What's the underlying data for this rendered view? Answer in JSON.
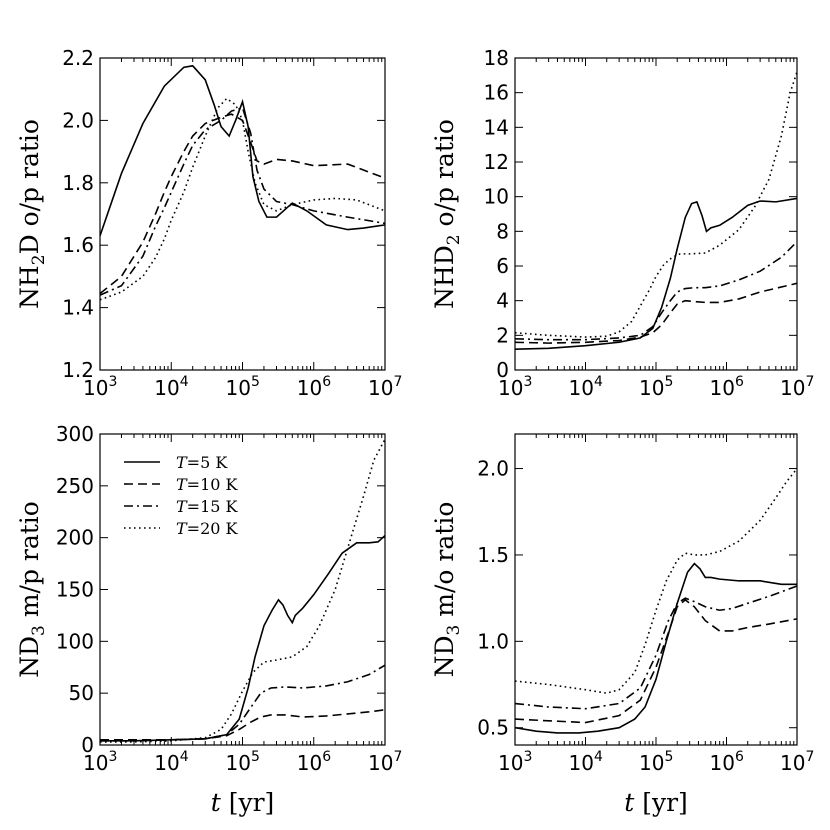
{
  "chart_data": [
    {
      "type": "line",
      "id": "p1",
      "ylabel": "NH2D o/p ratio",
      "ylabel_parts": {
        "a": "NH",
        "sub": "2",
        "b": "D  o/p ratio"
      },
      "xlabel": "",
      "xscale": "log",
      "xlim": [
        1000,
        10000000
      ],
      "ylim": [
        1.2,
        2.2
      ],
      "xtick_base": "10",
      "xticks": [
        {
          "value": 1000,
          "exp": "3"
        },
        {
          "value": 10000,
          "exp": "4"
        },
        {
          "value": 100000,
          "exp": "5"
        },
        {
          "value": 1000000,
          "exp": "6"
        },
        {
          "value": 10000000,
          "exp": "7"
        }
      ],
      "yticks": [
        {
          "value": 1.2,
          "label": "1.2"
        },
        {
          "value": 1.4,
          "label": "1.4"
        },
        {
          "value": 1.6,
          "label": "1.6"
        },
        {
          "value": 1.8,
          "label": "1.8"
        },
        {
          "value": 2.0,
          "label": "2.0"
        },
        {
          "value": 2.2,
          "label": "2.2"
        }
      ],
      "series": [
        {
          "name": "T=5 K",
          "dash": "solid",
          "x": [
            1000,
            2000,
            4000,
            8000,
            15000,
            20000,
            30000,
            40000,
            50000,
            65000,
            80000,
            100000,
            120000,
            140000,
            170000,
            220000,
            300000,
            500000,
            800000,
            1500000,
            3000000,
            5000000,
            10000000
          ],
          "y": [
            1.63,
            1.83,
            1.99,
            2.11,
            2.17,
            2.175,
            2.13,
            2.05,
            1.98,
            1.95,
            2.0,
            2.06,
            1.98,
            1.82,
            1.74,
            1.69,
            1.69,
            1.735,
            1.71,
            1.665,
            1.65,
            1.655,
            1.665
          ]
        },
        {
          "name": "T=10 K",
          "dash": "dashed",
          "x": [
            1000,
            2000,
            4000,
            6000,
            8000,
            10000,
            15000,
            20000,
            30000,
            50000,
            70000,
            100000,
            130000,
            160000,
            200000,
            300000,
            500000,
            1000000,
            3000000,
            10000000
          ],
          "y": [
            1.445,
            1.5,
            1.61,
            1.7,
            1.77,
            1.82,
            1.9,
            1.95,
            1.99,
            2.01,
            2.02,
            2.0,
            1.93,
            1.87,
            1.86,
            1.875,
            1.87,
            1.855,
            1.86,
            1.815
          ]
        },
        {
          "name": "T=15 K",
          "dash": "dashdot",
          "x": [
            1000,
            2000,
            4000,
            6000,
            8000,
            10000,
            15000,
            20000,
            30000,
            50000,
            70000,
            100000,
            130000,
            160000,
            200000,
            300000,
            500000,
            1000000,
            3000000,
            10000000
          ],
          "y": [
            1.44,
            1.47,
            1.565,
            1.66,
            1.72,
            1.77,
            1.86,
            1.92,
            1.97,
            2.0,
            2.03,
            2.04,
            1.96,
            1.84,
            1.78,
            1.74,
            1.73,
            1.71,
            1.69,
            1.67
          ]
        },
        {
          "name": "T=20 K",
          "dash": "dotted",
          "x": [
            1000,
            2000,
            4000,
            6000,
            8000,
            10000,
            15000,
            20000,
            30000,
            45000,
            60000,
            80000,
            100000,
            120000,
            150000,
            200000,
            300000,
            500000,
            1000000,
            2000000,
            4000000,
            10000000
          ],
          "y": [
            1.425,
            1.45,
            1.5,
            1.56,
            1.62,
            1.68,
            1.77,
            1.85,
            1.95,
            2.04,
            2.07,
            2.05,
            2.0,
            1.9,
            1.8,
            1.73,
            1.71,
            1.73,
            1.745,
            1.75,
            1.745,
            1.71
          ]
        }
      ]
    },
    {
      "type": "line",
      "id": "p2",
      "ylabel": "NHD2 o/p ratio",
      "ylabel_parts": {
        "a": "NHD",
        "sub": "2",
        "b": " o/p ratio"
      },
      "xlabel": "",
      "xscale": "log",
      "xlim": [
        1000,
        10000000
      ],
      "ylim": [
        0,
        18
      ],
      "xtick_base": "10",
      "xticks": [
        {
          "value": 1000,
          "exp": "3"
        },
        {
          "value": 10000,
          "exp": "4"
        },
        {
          "value": 100000,
          "exp": "5"
        },
        {
          "value": 1000000,
          "exp": "6"
        },
        {
          "value": 10000000,
          "exp": "7"
        }
      ],
      "yticks": [
        {
          "value": 0,
          "label": "0"
        },
        {
          "value": 2,
          "label": "2"
        },
        {
          "value": 4,
          "label": "4"
        },
        {
          "value": 6,
          "label": "6"
        },
        {
          "value": 8,
          "label": "8"
        },
        {
          "value": 10,
          "label": "10"
        },
        {
          "value": 12,
          "label": "12"
        },
        {
          "value": 14,
          "label": "14"
        },
        {
          "value": 16,
          "label": "16"
        },
        {
          "value": 18,
          "label": "18"
        }
      ],
      "series": [
        {
          "name": "T=5 K",
          "dash": "solid",
          "x": [
            1000,
            3000,
            10000,
            30000,
            60000,
            90000,
            120000,
            160000,
            200000,
            260000,
            320000,
            380000,
            450000,
            520000,
            600000,
            800000,
            1200000,
            2000000,
            3000000,
            5000000,
            10000000
          ],
          "y": [
            1.2,
            1.25,
            1.4,
            1.6,
            1.85,
            2.4,
            3.6,
            5.3,
            7.0,
            8.8,
            9.6,
            9.7,
            8.9,
            8.0,
            8.2,
            8.35,
            8.8,
            9.5,
            9.75,
            9.7,
            9.9
          ]
        },
        {
          "name": "T=10 K",
          "dash": "dashed",
          "x": [
            1000,
            3000,
            10000,
            30000,
            60000,
            90000,
            120000,
            160000,
            200000,
            260000,
            350000,
            500000,
            800000,
            1500000,
            3000000,
            10000000
          ],
          "y": [
            1.6,
            1.55,
            1.6,
            1.7,
            1.9,
            2.15,
            2.6,
            3.3,
            3.8,
            4.0,
            3.95,
            3.9,
            3.9,
            4.1,
            4.5,
            5.0
          ]
        },
        {
          "name": "T=15 K",
          "dash": "dashdot",
          "x": [
            1000,
            3000,
            10000,
            30000,
            60000,
            90000,
            120000,
            160000,
            200000,
            260000,
            350000,
            500000,
            800000,
            1500000,
            3000000,
            6000000,
            10000000
          ],
          "y": [
            1.8,
            1.75,
            1.75,
            1.85,
            2.0,
            2.5,
            3.3,
            4.0,
            4.5,
            4.7,
            4.75,
            4.75,
            4.85,
            5.2,
            5.7,
            6.5,
            7.4
          ]
        },
        {
          "name": "T=20 K",
          "dash": "dotted",
          "x": [
            1000,
            3000,
            10000,
            20000,
            30000,
            45000,
            60000,
            80000,
            100000,
            130000,
            170000,
            220000,
            300000,
            500000,
            800000,
            1500000,
            2500000,
            4000000,
            6000000,
            8000000,
            10000000
          ],
          "y": [
            2.15,
            2.0,
            1.9,
            1.95,
            2.2,
            2.8,
            3.7,
            4.6,
            5.4,
            6.1,
            6.5,
            6.7,
            6.7,
            6.75,
            7.2,
            8.1,
            9.4,
            11.0,
            13.5,
            16.0,
            17.2
          ]
        }
      ]
    },
    {
      "type": "line",
      "id": "p3",
      "ylabel": "ND3 m/p ratio",
      "ylabel_parts": {
        "a": "ND",
        "sub": "3",
        "b": " m/p ratio"
      },
      "xlabel": "t [yr]",
      "xlabel_parts": {
        "italic": "t",
        "rest": " [yr]"
      },
      "xscale": "log",
      "xlim": [
        1000,
        10000000
      ],
      "ylim": [
        0,
        300
      ],
      "xtick_base": "10",
      "xticks": [
        {
          "value": 1000,
          "exp": "3"
        },
        {
          "value": 10000,
          "exp": "4"
        },
        {
          "value": 100000,
          "exp": "5"
        },
        {
          "value": 1000000,
          "exp": "6"
        },
        {
          "value": 10000000,
          "exp": "7"
        }
      ],
      "yticks": [
        {
          "value": 0,
          "label": "0"
        },
        {
          "value": 50,
          "label": "50"
        },
        {
          "value": 100,
          "label": "100"
        },
        {
          "value": 150,
          "label": "150"
        },
        {
          "value": 200,
          "label": "200"
        },
        {
          "value": 250,
          "label": "250"
        },
        {
          "value": 300,
          "label": "300"
        }
      ],
      "legend": {
        "placement": "top-left",
        "entries": [
          {
            "label": "T=5 K",
            "italic": "T",
            "rest": "=5 K",
            "dash": "solid"
          },
          {
            "label": "T=10 K",
            "italic": "T",
            "rest": "=10 K",
            "dash": "dashed"
          },
          {
            "label": "T=15 K",
            "italic": "T",
            "rest": "=15 K",
            "dash": "dashdot"
          },
          {
            "label": "T=20 K",
            "italic": "T",
            "rest": "=20 K",
            "dash": "dotted"
          }
        ]
      },
      "series": [
        {
          "name": "T=5 K",
          "dash": "solid",
          "x": [
            1000,
            3000,
            10000,
            30000,
            60000,
            90000,
            120000,
            150000,
            200000,
            260000,
            320000,
            370000,
            430000,
            500000,
            550000,
            700000,
            1000000,
            1600000,
            2500000,
            4000000,
            6000000,
            8000000,
            10000000
          ],
          "y": [
            4,
            4,
            5,
            6,
            10,
            25,
            55,
            85,
            115,
            130,
            140,
            135,
            125,
            118,
            125,
            132,
            145,
            165,
            185,
            195,
            195,
            196,
            202
          ]
        },
        {
          "name": "T=10 K",
          "dash": "dashed",
          "x": [
            1000,
            3000,
            10000,
            30000,
            60000,
            90000,
            130000,
            180000,
            250000,
            400000,
            700000,
            1500000,
            3000000,
            6000000,
            10000000
          ],
          "y": [
            5,
            5,
            5,
            6,
            9,
            15,
            22,
            27,
            29,
            29,
            27,
            28,
            30,
            32,
            34
          ]
        },
        {
          "name": "T=15 K",
          "dash": "dashdot",
          "x": [
            1000,
            3000,
            10000,
            30000,
            60000,
            90000,
            130000,
            180000,
            250000,
            400000,
            700000,
            1500000,
            3000000,
            6000000,
            10000000
          ],
          "y": [
            4,
            4,
            5,
            6,
            10,
            20,
            36,
            50,
            55,
            56,
            55,
            57,
            61,
            68,
            77
          ]
        },
        {
          "name": "T=20 K",
          "dash": "dotted",
          "x": [
            1000,
            3000,
            10000,
            30000,
            50000,
            70000,
            100000,
            140000,
            200000,
            300000,
            500000,
            800000,
            1200000,
            2000000,
            3000000,
            5000000,
            7000000,
            10000000
          ],
          "y": [
            3,
            3,
            4,
            7,
            15,
            30,
            52,
            70,
            80,
            82,
            85,
            95,
            115,
            150,
            190,
            240,
            275,
            295
          ]
        }
      ]
    },
    {
      "type": "line",
      "id": "p4",
      "ylabel": "ND3 m/o ratio",
      "ylabel_parts": {
        "a": "ND",
        "sub": "3",
        "b": " m/o ratio"
      },
      "xlabel": "t [yr]",
      "xlabel_parts": {
        "italic": "t",
        "rest": " [yr]"
      },
      "xscale": "log",
      "xlim": [
        1000,
        10000000
      ],
      "ylim": [
        0.4,
        2.2
      ],
      "xtick_base": "10",
      "xticks": [
        {
          "value": 1000,
          "exp": "3"
        },
        {
          "value": 10000,
          "exp": "4"
        },
        {
          "value": 100000,
          "exp": "5"
        },
        {
          "value": 1000000,
          "exp": "6"
        },
        {
          "value": 10000000,
          "exp": "7"
        }
      ],
      "yticks": [
        {
          "value": 0.5,
          "label": "0.5"
        },
        {
          "value": 1.0,
          "label": "1.0"
        },
        {
          "value": 1.5,
          "label": "1.5"
        },
        {
          "value": 2.0,
          "label": "2.0"
        }
      ],
      "series": [
        {
          "name": "T=5 K",
          "dash": "solid",
          "x": [
            1000,
            2000,
            4000,
            8000,
            15000,
            30000,
            50000,
            70000,
            100000,
            140000,
            200000,
            280000,
            350000,
            420000,
            500000,
            600000,
            800000,
            1500000,
            3000000,
            6000000,
            10000000
          ],
          "y": [
            0.5,
            0.48,
            0.47,
            0.47,
            0.48,
            0.5,
            0.55,
            0.62,
            0.78,
            1.0,
            1.22,
            1.4,
            1.45,
            1.42,
            1.37,
            1.37,
            1.36,
            1.35,
            1.35,
            1.33,
            1.33
          ]
        },
        {
          "name": "T=10 K",
          "dash": "dashed",
          "x": [
            1000,
            3000,
            10000,
            30000,
            60000,
            100000,
            150000,
            200000,
            260000,
            350000,
            500000,
            800000,
            1200000,
            2000000,
            4000000,
            10000000
          ],
          "y": [
            0.55,
            0.54,
            0.53,
            0.57,
            0.66,
            0.85,
            1.05,
            1.2,
            1.24,
            1.2,
            1.12,
            1.06,
            1.06,
            1.08,
            1.1,
            1.13
          ]
        },
        {
          "name": "T=15 K",
          "dash": "dashdot",
          "x": [
            1000,
            3000,
            10000,
            30000,
            60000,
            100000,
            150000,
            200000,
            260000,
            350000,
            500000,
            800000,
            1200000,
            2000000,
            4000000,
            10000000
          ],
          "y": [
            0.64,
            0.62,
            0.61,
            0.64,
            0.73,
            0.92,
            1.12,
            1.22,
            1.25,
            1.23,
            1.2,
            1.18,
            1.19,
            1.22,
            1.26,
            1.32
          ]
        },
        {
          "name": "T=20 K",
          "dash": "dotted",
          "x": [
            1000,
            3000,
            10000,
            20000,
            30000,
            50000,
            70000,
            100000,
            140000,
            200000,
            260000,
            350000,
            500000,
            800000,
            1500000,
            3000000,
            5000000,
            7000000,
            10000000
          ],
          "y": [
            0.77,
            0.75,
            0.72,
            0.7,
            0.72,
            0.82,
            0.98,
            1.18,
            1.35,
            1.47,
            1.51,
            1.5,
            1.5,
            1.52,
            1.58,
            1.7,
            1.83,
            1.92,
            2.0
          ]
        }
      ]
    }
  ]
}
